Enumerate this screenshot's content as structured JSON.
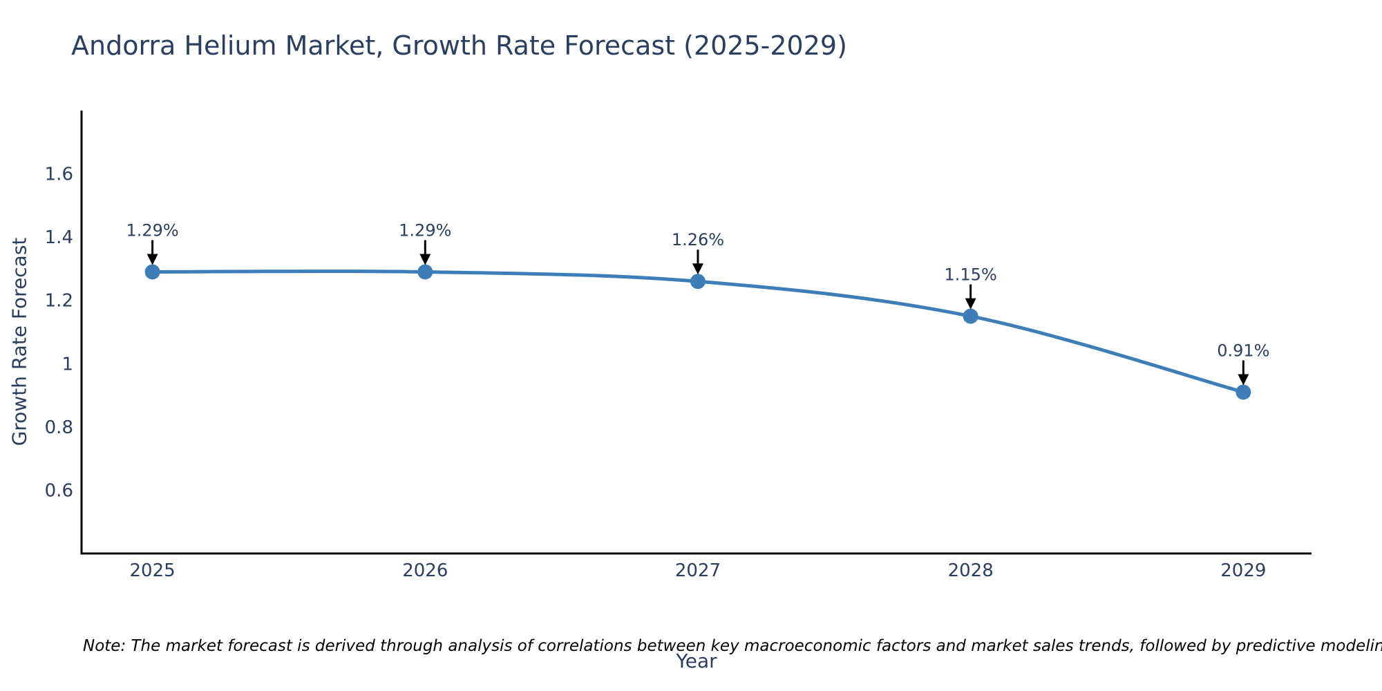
{
  "title": "Andorra Helium Market, Growth Rate Forecast (2025-2029)",
  "note": "Note: The market forecast is derived through analysis of correlations between key macroeconomic factors and market sales trends, followed by predictive modeling to project future sales",
  "chart_data": {
    "type": "line",
    "title": "Andorra Helium Market, Growth Rate Forecast (2025-2029)",
    "xlabel": "Year",
    "ylabel": "Growth Rate Forecast",
    "x": [
      2025,
      2026,
      2027,
      2028,
      2029
    ],
    "values": [
      1.29,
      1.29,
      1.26,
      1.15,
      0.91
    ],
    "point_labels": [
      "1.29%",
      "1.29%",
      "1.26%",
      "1.15%",
      "0.91%"
    ],
    "xticks": [
      2025,
      2026,
      2027,
      2028,
      2029
    ],
    "yticks": [
      0.6,
      0.8,
      1,
      1.2,
      1.4,
      1.6
    ],
    "xlim": [
      2024.74,
      2029.25
    ],
    "ylim": [
      0.4,
      1.8
    ],
    "grid": false,
    "legend": "none",
    "line_shape": "spline",
    "annotation_arrows": true,
    "colors": {
      "line": "#3d7eb8",
      "marker": "#3d7eb8",
      "text": "#2a3f5f",
      "axis": "#000000",
      "arrow": "#000000",
      "note_text": "#000000",
      "background": "#ffffff"
    }
  }
}
